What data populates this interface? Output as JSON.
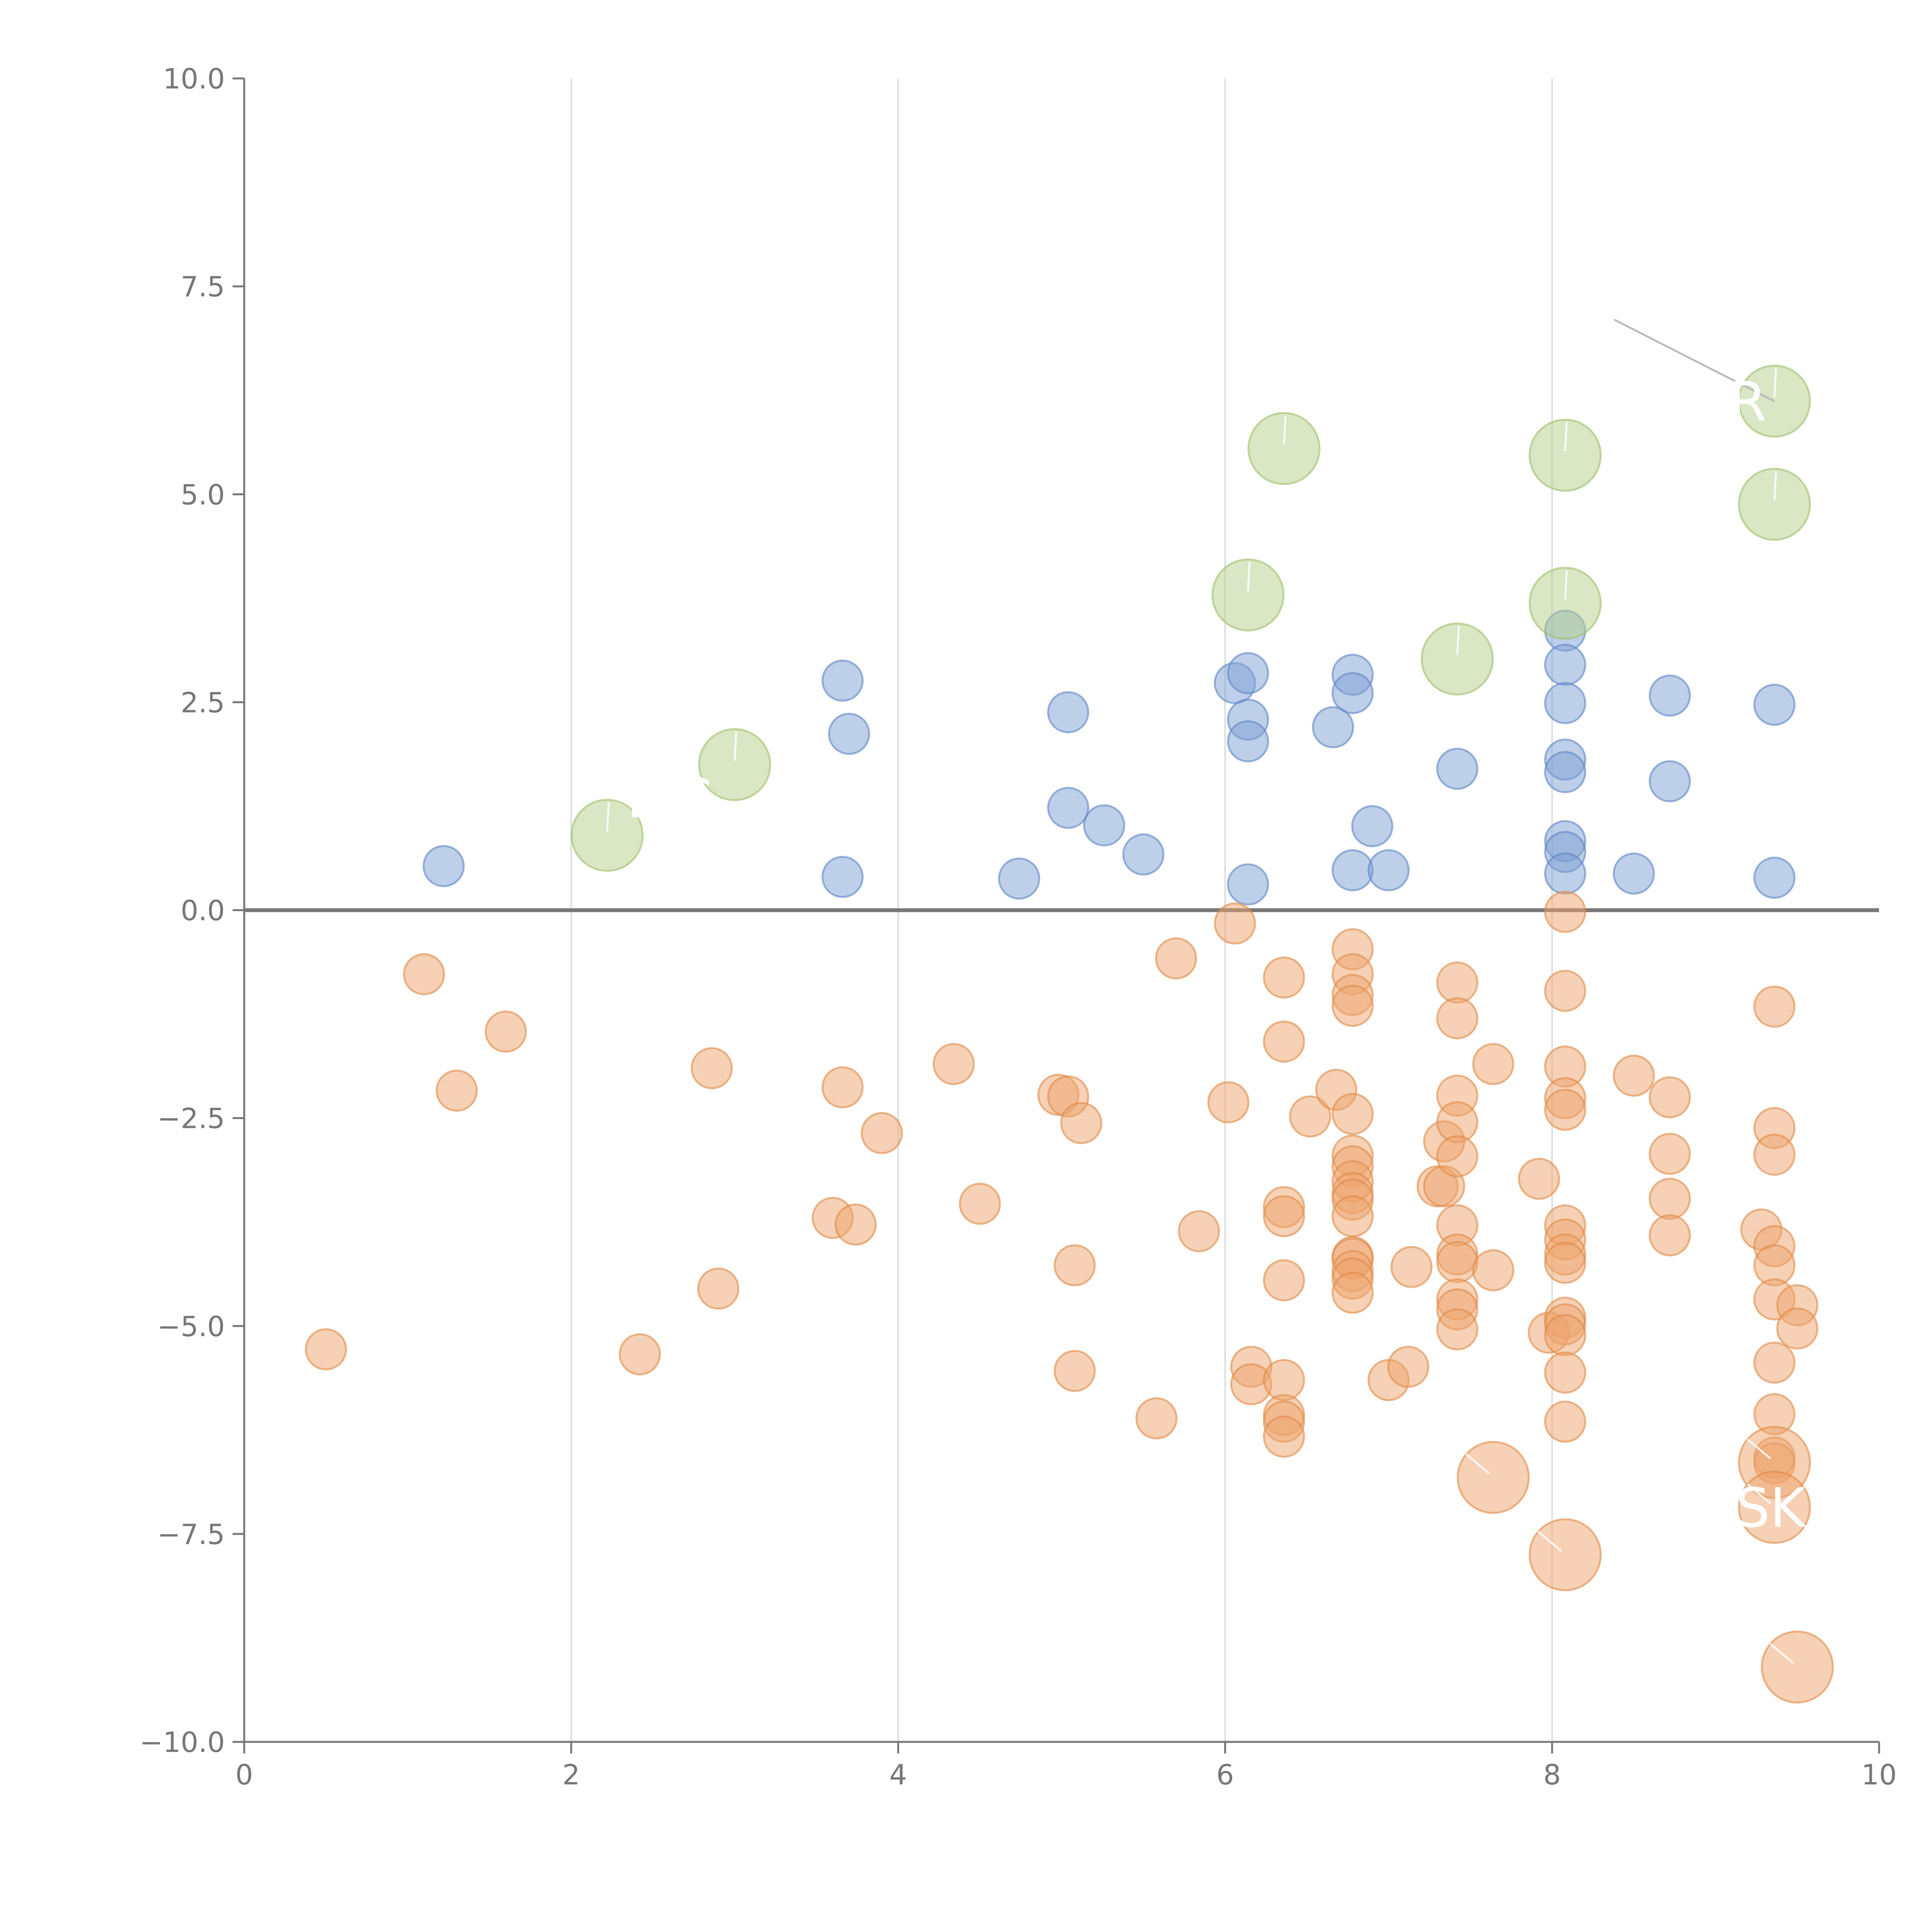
{
  "chart_data": {
    "type": "scatter",
    "title": "",
    "xlabel": "",
    "ylabel": "",
    "xlim": [
      0,
      10
    ],
    "ylim": [
      -10,
      10
    ],
    "grid": "vertical",
    "zero_line": true,
    "x_ticks": [
      "0",
      "2",
      "4",
      "6",
      "8",
      "10"
    ],
    "y_ticks": [
      "10.0",
      "7.5",
      "5.0",
      "2.5",
      "0.0",
      "−2.5",
      "−5.0",
      "−7.5",
      "−10.0"
    ],
    "colors": {
      "positive": "#7da0d4",
      "negative": "#eea36b",
      "highlight_positive": "#b6d08a",
      "highlight_negative": "#eea36b",
      "axis": "#777777",
      "grid": "#dddddd"
    },
    "series": [
      {
        "name": "positive",
        "points": [
          [
            1.22,
            0.53
          ],
          [
            3.66,
            2.76
          ],
          [
            3.7,
            2.12
          ],
          [
            3.66,
            0.4
          ],
          [
            4.74,
            0.38
          ],
          [
            5.04,
            2.38
          ],
          [
            5.04,
            1.23
          ],
          [
            5.26,
            1.02
          ],
          [
            5.5,
            0.67
          ],
          [
            6.06,
            2.73
          ],
          [
            6.14,
            2.85
          ],
          [
            6.14,
            2.29
          ],
          [
            6.14,
            2.03
          ],
          [
            6.14,
            0.31
          ],
          [
            6.66,
            2.2
          ],
          [
            6.78,
            2.83
          ],
          [
            6.78,
            2.61
          ],
          [
            6.78,
            0.48
          ],
          [
            6.9,
            1.01
          ],
          [
            7.0,
            0.48
          ],
          [
            7.42,
            1.7
          ],
          [
            8.08,
            3.36
          ],
          [
            8.08,
            2.95
          ],
          [
            8.08,
            2.49
          ],
          [
            8.08,
            1.81
          ],
          [
            8.08,
            1.66
          ],
          [
            8.08,
            0.83
          ],
          [
            8.08,
            0.7
          ],
          [
            8.08,
            0.44
          ],
          [
            8.5,
            0.44
          ],
          [
            8.72,
            2.58
          ],
          [
            8.72,
            1.55
          ],
          [
            9.36,
            2.47
          ],
          [
            9.36,
            0.39
          ]
        ]
      },
      {
        "name": "negative",
        "points": [
          [
            0.5,
            -5.28
          ],
          [
            1.1,
            -0.77
          ],
          [
            1.3,
            -2.17
          ],
          [
            1.6,
            -1.46
          ],
          [
            2.42,
            -5.34
          ],
          [
            2.86,
            -1.9
          ],
          [
            2.9,
            -4.55
          ],
          [
            3.6,
            -3.7
          ],
          [
            3.66,
            -2.13
          ],
          [
            3.74,
            -3.78
          ],
          [
            3.9,
            -2.68
          ],
          [
            4.34,
            -1.85
          ],
          [
            4.5,
            -3.53
          ],
          [
            4.98,
            -2.22
          ],
          [
            5.04,
            -2.24
          ],
          [
            5.08,
            -4.27
          ],
          [
            5.08,
            -5.54
          ],
          [
            5.12,
            -2.56
          ],
          [
            5.58,
            -6.11
          ],
          [
            5.7,
            -0.58
          ],
          [
            5.84,
            -3.86
          ],
          [
            6.02,
            -2.31
          ],
          [
            6.06,
            -0.16
          ],
          [
            6.16,
            -5.49
          ],
          [
            6.16,
            -5.7
          ],
          [
            6.36,
            -0.81
          ],
          [
            6.36,
            -1.58
          ],
          [
            6.36,
            -3.57
          ],
          [
            6.36,
            -3.68
          ],
          [
            6.36,
            -4.45
          ],
          [
            6.36,
            -5.65
          ],
          [
            6.36,
            -6.07
          ],
          [
            6.36,
            -6.15
          ],
          [
            6.36,
            -6.33
          ],
          [
            6.52,
            -2.48
          ],
          [
            6.68,
            -2.16
          ],
          [
            6.78,
            -0.47
          ],
          [
            6.78,
            -0.77
          ],
          [
            6.78,
            -1.02
          ],
          [
            6.78,
            -1.15
          ],
          [
            6.78,
            -2.45
          ],
          [
            6.78,
            -2.95
          ],
          [
            6.78,
            -3.08
          ],
          [
            6.78,
            -3.26
          ],
          [
            6.78,
            -3.4
          ],
          [
            6.78,
            -3.48
          ],
          [
            6.78,
            -3.68
          ],
          [
            6.78,
            -4.17
          ],
          [
            6.78,
            -4.19
          ],
          [
            6.78,
            -4.34
          ],
          [
            6.78,
            -4.43
          ],
          [
            6.78,
            -4.6
          ],
          [
            7.0,
            -5.65
          ],
          [
            7.12,
            -5.49
          ],
          [
            7.14,
            -4.29
          ],
          [
            7.3,
            -3.32
          ],
          [
            7.34,
            -3.32
          ],
          [
            7.34,
            -2.78
          ],
          [
            7.42,
            -0.87
          ],
          [
            7.42,
            -1.3
          ],
          [
            7.42,
            -2.23
          ],
          [
            7.42,
            -2.55
          ],
          [
            7.42,
            -2.96
          ],
          [
            7.42,
            -3.79
          ],
          [
            7.42,
            -4.14
          ],
          [
            7.42,
            -4.23
          ],
          [
            7.42,
            -4.68
          ],
          [
            7.42,
            -4.8
          ],
          [
            7.42,
            -5.04
          ],
          [
            7.64,
            -1.85
          ],
          [
            7.64,
            -4.33
          ],
          [
            7.92,
            -3.23
          ],
          [
            7.98,
            -5.08
          ],
          [
            8.08,
            -0.02
          ],
          [
            8.08,
            -0.97
          ],
          [
            8.08,
            -1.88
          ],
          [
            8.08,
            -2.26
          ],
          [
            8.08,
            -2.4
          ],
          [
            8.08,
            -3.79
          ],
          [
            8.08,
            -3.96
          ],
          [
            8.08,
            -4.14
          ],
          [
            8.08,
            -4.24
          ],
          [
            8.08,
            -4.9
          ],
          [
            8.08,
            -4.98
          ],
          [
            8.08,
            -5.11
          ],
          [
            8.08,
            -5.56
          ],
          [
            8.08,
            -6.15
          ],
          [
            8.5,
            -1.99
          ],
          [
            8.72,
            -2.25
          ],
          [
            8.72,
            -2.93
          ],
          [
            8.72,
            -3.47
          ],
          [
            8.72,
            -3.91
          ],
          [
            9.28,
            -3.84
          ],
          [
            9.36,
            -1.16
          ],
          [
            9.36,
            -2.62
          ],
          [
            9.36,
            -2.94
          ],
          [
            9.36,
            -4.04
          ],
          [
            9.36,
            -4.27
          ],
          [
            9.36,
            -4.68
          ],
          [
            9.36,
            -5.44
          ],
          [
            9.36,
            -6.06
          ],
          [
            9.36,
            -6.58
          ],
          [
            9.36,
            -6.65
          ],
          [
            9.5,
            -4.75
          ],
          [
            9.5,
            -5.03
          ]
        ]
      },
      {
        "name": "highlight-positive",
        "points": [
          [
            2.22,
            0.9
          ],
          [
            3.0,
            1.75
          ],
          [
            6.14,
            3.79
          ],
          [
            6.36,
            5.55
          ],
          [
            7.42,
            3.02
          ],
          [
            8.08,
            5.47
          ],
          [
            8.08,
            3.69
          ],
          [
            9.36,
            6.12
          ],
          [
            9.36,
            4.88
          ]
        ]
      },
      {
        "name": "highlight-negative",
        "points": [
          [
            7.64,
            -6.82
          ],
          [
            8.08,
            -7.75
          ],
          [
            9.36,
            -6.64
          ],
          [
            9.36,
            -7.18
          ],
          [
            9.5,
            -9.1
          ]
        ]
      }
    ],
    "annotations": [
      {
        "text": "CR",
        "x": 9.36,
        "y": 6.12
      },
      {
        "text": "SK",
        "x": 9.36,
        "y": -7.18
      },
      {
        "text": "L C",
        "x": 2.6,
        "y": 1.35
      }
    ]
  }
}
